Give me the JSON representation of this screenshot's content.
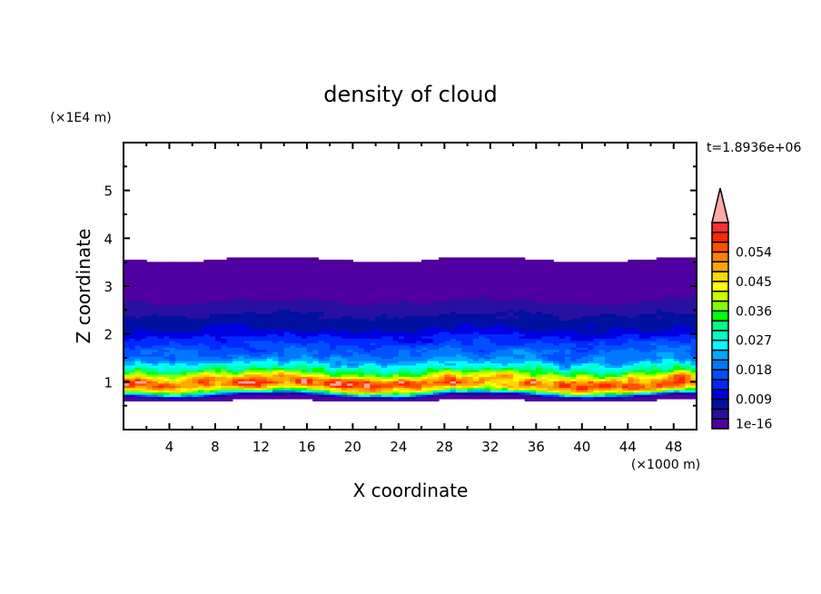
{
  "chart_data": {
    "type": "heatmap",
    "title": "density of cloud",
    "xlabel": "X coordinate",
    "ylabel": "Z coordinate",
    "x_unit": "(×1000 m)",
    "y_unit": "(×1E4 m)",
    "annotation": "t=1.8936e+06",
    "xlim": [
      0,
      50
    ],
    "ylim": [
      0,
      6
    ],
    "x_ticks": [
      4,
      8,
      12,
      16,
      20,
      24,
      28,
      32,
      36,
      40,
      44,
      48
    ],
    "y_ticks": [
      1,
      2,
      3,
      4,
      5
    ],
    "colorbar": {
      "levels": [
        1e-16,
        0.003,
        0.006,
        0.009,
        0.012,
        0.015,
        0.018,
        0.021,
        0.024,
        0.027,
        0.03,
        0.033,
        0.036,
        0.039,
        0.042,
        0.045,
        0.048,
        0.051,
        0.054,
        0.057,
        0.06
      ],
      "tick_labels": [
        "1e-16",
        "0.009",
        "0.018",
        "0.027",
        "0.036",
        "0.045",
        "0.054"
      ],
      "colors": [
        "#5000a0",
        "#2a10a0",
        "#0010a0",
        "#0000e0",
        "#0028ff",
        "#0050ff",
        "#0078ff",
        "#00a8ff",
        "#00ffff",
        "#00ffc8",
        "#00ff80",
        "#00ff00",
        "#80ff00",
        "#c8ff00",
        "#ffff00",
        "#ffd800",
        "#ffa800",
        "#ff8000",
        "#ff5000",
        "#ff2800",
        "#ff3030"
      ],
      "over_color": "#ffa8a8",
      "extend": "max"
    },
    "vertical_profile": {
      "z": [
        0.6,
        0.68,
        0.72,
        0.78,
        0.85,
        0.95,
        1.05,
        1.15,
        1.25,
        1.35,
        1.5,
        1.7,
        1.9,
        2.1,
        2.3,
        2.5,
        2.7,
        2.9,
        3.1,
        3.3,
        3.5,
        3.56
      ],
      "density": [
        0,
        0.002,
        0.008,
        0.03,
        0.045,
        0.055,
        0.05,
        0.04,
        0.032,
        0.026,
        0.02,
        0.017,
        0.013,
        0.009,
        0.007,
        0.005,
        0.003,
        0.0015,
        0.001,
        0.0008,
        0.0005,
        0
      ]
    }
  }
}
